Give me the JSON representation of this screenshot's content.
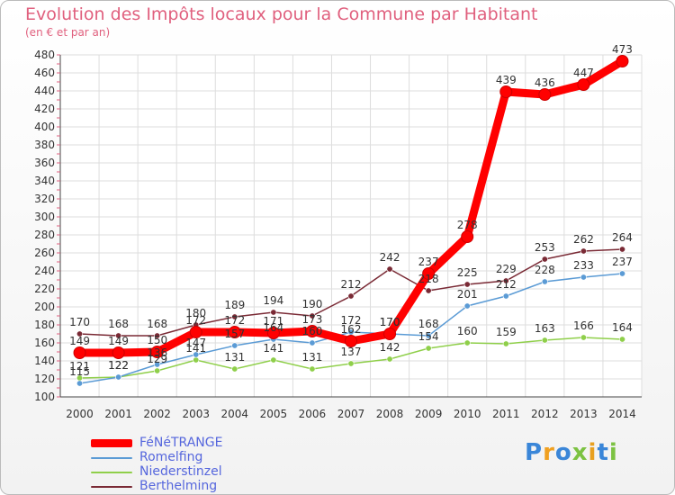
{
  "header": {
    "title": "Evolution des Impôts locaux pour la Commune par Habitant",
    "subtitle": "(en € et par an)"
  },
  "logo": {
    "parts": [
      {
        "text": "P",
        "color": "#3a86d8"
      },
      {
        "text": "r",
        "color": "#f0a020"
      },
      {
        "text": "o",
        "color": "#3a86d8"
      },
      {
        "text": "x",
        "color": "#7cc242"
      },
      {
        "text": "i",
        "color": "#e8a020"
      },
      {
        "text": "t",
        "color": "#3a86d8"
      },
      {
        "text": "i",
        "color": "#7cc242"
      }
    ]
  },
  "chart_data": {
    "type": "line",
    "title": "Evolution des Impôts locaux pour la Commune par Habitant",
    "subtitle": "(en € et par an)",
    "xlabel": "",
    "ylabel": "",
    "categories": [
      "2000",
      "2001",
      "2002",
      "2003",
      "2004",
      "2005",
      "2006",
      "2007",
      "2008",
      "2009",
      "2010",
      "2011",
      "2012",
      "2013",
      "2014"
    ],
    "ylim": [
      100,
      480
    ],
    "yticks": [
      100,
      120,
      140,
      160,
      180,
      200,
      220,
      240,
      260,
      280,
      300,
      320,
      340,
      360,
      380,
      400,
      420,
      440,
      460,
      480
    ],
    "grid": true,
    "legend": "bottom-left",
    "series": [
      {
        "name": "Berthelming",
        "color": "#7a2a35",
        "values": [
          170,
          168,
          168,
          180,
          189,
          194,
          190,
          212,
          242,
          218,
          225,
          229,
          253,
          262,
          264
        ]
      },
      {
        "name": "Niederstinzel",
        "color": "#8fcf4a",
        "values": [
          121,
          122,
          129,
          141,
          131,
          141,
          131,
          137,
          142,
          154,
          160,
          159,
          163,
          166,
          164
        ]
      },
      {
        "name": "Romelfing",
        "color": "#5b9bd5",
        "values": [
          115,
          122,
          136,
          147,
          157,
          164,
          160,
          172,
          170,
          168,
          201,
          212,
          228,
          233,
          237
        ]
      },
      {
        "name": "FéNéTRANGE",
        "color": "#ff0000",
        "values": [
          149,
          149,
          150,
          172,
          172,
          171,
          173,
          162,
          170,
          237,
          278,
          439,
          436,
          447,
          473
        ]
      }
    ]
  }
}
